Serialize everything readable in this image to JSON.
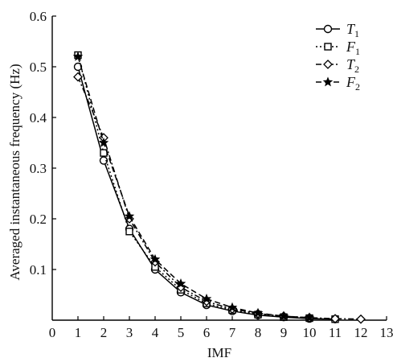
{
  "chart_data": {
    "type": "line",
    "xlabel": "IMF",
    "ylabel": "Averaged instantaneous frequency (Hz)",
    "xlim": [
      0,
      13
    ],
    "ylim": [
      0,
      0.6
    ],
    "xticks": [
      "0",
      "1",
      "2",
      "3",
      "4",
      "5",
      "6",
      "7",
      "8",
      "9",
      "10",
      "11",
      "12",
      "13"
    ],
    "yticks": [
      "0.1",
      "0.2",
      "0.3",
      "0.4",
      "0.5",
      "0.6"
    ],
    "grid": false,
    "legend_position": "top-right",
    "series": [
      {
        "name": "T1",
        "name_main": "T",
        "name_sub": "1",
        "marker": "circle",
        "line": "solid",
        "x": [
          1,
          2,
          3,
          4,
          5,
          6,
          7,
          8,
          9,
          10,
          11
        ],
        "values": [
          0.5,
          0.315,
          0.18,
          0.1,
          0.055,
          0.03,
          0.018,
          0.01,
          0.006,
          0.003,
          0.002
        ]
      },
      {
        "name": "F1",
        "name_main": "F",
        "name_sub": "1",
        "marker": "square",
        "line": "dotted",
        "x": [
          1,
          2,
          3,
          4,
          5,
          6,
          7,
          8,
          9,
          10,
          11
        ],
        "values": [
          0.523,
          0.33,
          0.175,
          0.105,
          0.06,
          0.033,
          0.02,
          0.011,
          0.006,
          0.004,
          0.002
        ]
      },
      {
        "name": "T2",
        "name_main": "T",
        "name_sub": "2",
        "marker": "diamond",
        "line": "dashdot",
        "x": [
          1,
          2,
          3,
          4,
          5,
          6,
          7,
          8,
          9,
          10,
          11,
          12
        ],
        "values": [
          0.48,
          0.36,
          0.2,
          0.115,
          0.065,
          0.037,
          0.022,
          0.013,
          0.008,
          0.005,
          0.003,
          0.002
        ]
      },
      {
        "name": "F2",
        "name_main": "F",
        "name_sub": "2",
        "marker": "star",
        "line": "dashed",
        "x": [
          1,
          2,
          3,
          4,
          5,
          6,
          7,
          8,
          9,
          10
        ],
        "values": [
          0.52,
          0.35,
          0.205,
          0.12,
          0.072,
          0.042,
          0.025,
          0.014,
          0.008,
          0.005
        ]
      }
    ]
  }
}
